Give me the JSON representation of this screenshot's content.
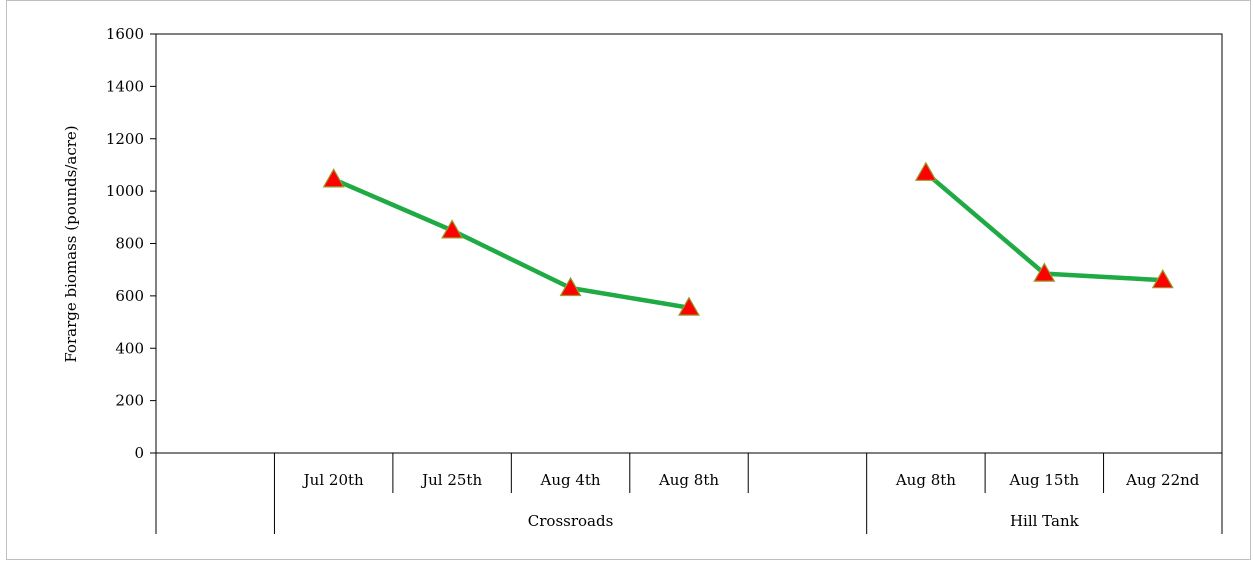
{
  "chart_data": {
    "type": "line",
    "title": "",
    "ylabel": "Forarge biomass (pounds/acre)",
    "xlabel": "",
    "ylim": [
      0,
      1600
    ],
    "y_ticks": [
      "0",
      "200",
      "400",
      "600",
      "800",
      "1000",
      "1200",
      "1400",
      "1600"
    ],
    "grid": false,
    "legend": "none",
    "line_color": "#1faa43",
    "marker_fill": "#ff0000",
    "marker_edge": "#9a9a2a",
    "marker_shape": "triangle",
    "categories": [
      "",
      "Jul 20th",
      "Jul 25th",
      "Aug 4th",
      "Aug 8th",
      "",
      "Aug 8th",
      "Aug 15th",
      "Aug 22nd"
    ],
    "groups": [
      {
        "label": "",
        "span": 1
      },
      {
        "label": "Crossroads",
        "span": 5
      },
      {
        "label": "Hill Tank",
        "span": 3
      }
    ],
    "segments": [
      {
        "group": "Crossroads",
        "points": [
          {
            "category_index": 1,
            "value": 1045
          },
          {
            "category_index": 2,
            "value": 850
          },
          {
            "category_index": 3,
            "value": 630
          },
          {
            "category_index": 4,
            "value": 555
          }
        ]
      },
      {
        "group": "Hill Tank",
        "points": [
          {
            "category_index": 6,
            "value": 1070
          },
          {
            "category_index": 7,
            "value": 685
          },
          {
            "category_index": 8,
            "value": 660
          }
        ]
      }
    ]
  }
}
